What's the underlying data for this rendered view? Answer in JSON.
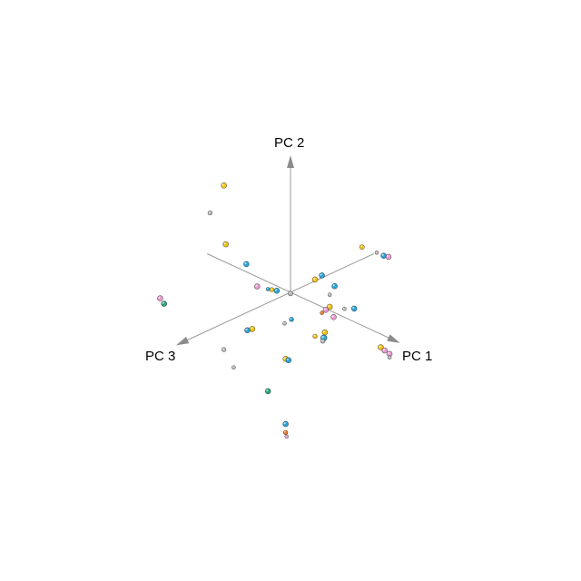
{
  "chart_data": {
    "type": "scatter",
    "projection": "3d",
    "title": "",
    "grid": false,
    "legend": "none",
    "axes": [
      {
        "id": "pc1",
        "label": "PC 1"
      },
      {
        "id": "pc2",
        "label": "PC 2"
      },
      {
        "id": "pc3",
        "label": "PC 3"
      }
    ],
    "axis_color": "#9a9a9a",
    "colors": {
      "blue": "#2aa4d8",
      "yellow": "#f3c316",
      "pink": "#e89ad0",
      "gray": "#b9b9b9",
      "green": "#2ea37a",
      "orange": "#e5792a"
    },
    "points": [
      {
        "pc1": -0.48,
        "pc2": 0.78,
        "pc3": 0.2,
        "color": "yellow",
        "size": 3.0
      },
      {
        "pc1": -0.62,
        "pc2": 0.5,
        "pc3": 0.2,
        "color": "gray",
        "size": 2.4
      },
      {
        "pc1": -0.46,
        "pc2": 0.3,
        "pc3": 0.2,
        "color": "yellow",
        "size": 3.0
      },
      {
        "pc1": -0.35,
        "pc2": 0.14,
        "pc3": 0.1,
        "color": "blue",
        "size": 3.0
      },
      {
        "pc1": -0.34,
        "pc2": -0.08,
        "pc3": 0.0,
        "color": "pink",
        "size": 3.0
      },
      {
        "pc1": -0.14,
        "pc2": -0.04,
        "pc3": 0.0,
        "color": "blue",
        "size": 3.0
      },
      {
        "pc1": -0.19,
        "pc2": -0.05,
        "pc3": 0.0,
        "color": "yellow",
        "size": 2.4
      },
      {
        "pc1": -0.23,
        "pc2": -0.06,
        "pc3": 0.0,
        "color": "blue",
        "size": 2.0
      },
      {
        "pc1": 0.0,
        "pc2": -0.01,
        "pc3": 0.0,
        "color": "gray",
        "size": 2.6
      },
      {
        "pc1": 0.01,
        "pc2": -0.22,
        "pc3": 0.0,
        "color": "blue",
        "size": 2.4
      },
      {
        "pc1": -0.06,
        "pc2": -0.28,
        "pc3": 0.0,
        "color": "gray",
        "size": 2.0
      },
      {
        "pc1": -0.39,
        "pc2": -0.45,
        "pc3": 0.0,
        "color": "yellow",
        "size": 3.0
      },
      {
        "pc1": -0.44,
        "pc2": -0.48,
        "pc3": 0.0,
        "color": "blue",
        "size": 3.0
      },
      {
        "pc1": -0.68,
        "pc2": -0.73,
        "pc3": 0.0,
        "color": "gray",
        "size": 2.4
      },
      {
        "pc1": -0.58,
        "pc2": -0.84,
        "pc3": 0.0,
        "color": "gray",
        "size": 2.0
      },
      {
        "pc1": -0.05,
        "pc2": -0.57,
        "pc3": 0.0,
        "color": "yellow",
        "size": 3.0
      },
      {
        "pc1": -0.02,
        "pc2": -0.57,
        "pc3": 0.0,
        "color": "blue",
        "size": 3.0
      },
      {
        "pc1": -0.13,
        "pc2": -0.83,
        "pc3": 0.1,
        "color": "green",
        "size": 3.0
      },
      {
        "pc1": -1.33,
        "pc2": -0.55,
        "pc3": 0.0,
        "color": "pink",
        "size": 3.0
      },
      {
        "pc1": -1.29,
        "pc2": -0.58,
        "pc3": 0.0,
        "color": "green",
        "size": 3.0
      },
      {
        "pc1": -0.05,
        "pc2": -1.11,
        "pc3": 0.0,
        "color": "blue",
        "size": 3.0
      },
      {
        "pc1": -0.05,
        "pc2": -1.18,
        "pc3": 0.0,
        "color": "orange",
        "size": 2.4
      },
      {
        "pc1": -0.04,
        "pc2": -1.21,
        "pc3": 0.0,
        "color": "pink",
        "size": 2.0
      },
      {
        "pc1": 0.25,
        "pc2": 0.2,
        "pc3": 0.0,
        "color": "yellow",
        "size": 3.0
      },
      {
        "pc1": 0.32,
        "pc2": 0.26,
        "pc3": 0.0,
        "color": "blue",
        "size": 3.0
      },
      {
        "pc1": 0.45,
        "pc2": 0.22,
        "pc3": 0.0,
        "color": "blue",
        "size": 3.0
      },
      {
        "pc1": 0.4,
        "pc2": 0.13,
        "pc3": 0.0,
        "color": "gray",
        "size": 2.0
      },
      {
        "pc1": 0.4,
        "pc2": 0.03,
        "pc3": 0.0,
        "color": "yellow",
        "size": 3.0
      },
      {
        "pc1": 0.36,
        "pc2": -0.01,
        "pc3": 0.0,
        "color": "pink",
        "size": 3.0
      },
      {
        "pc1": 0.44,
        "pc2": -0.04,
        "pc3": 0.0,
        "color": "pink",
        "size": 3.0
      },
      {
        "pc1": 0.32,
        "pc2": -0.05,
        "pc3": 0.0,
        "color": "orange",
        "size": 2.0
      },
      {
        "pc1": 0.35,
        "pc2": -0.2,
        "pc3": 0.0,
        "color": "yellow",
        "size": 3.0
      },
      {
        "pc1": 0.34,
        "pc2": -0.25,
        "pc3": 0.0,
        "color": "blue",
        "size": 3.4
      },
      {
        "pc1": 0.33,
        "pc2": -0.28,
        "pc3": 0.0,
        "color": "gray",
        "size": 2.4
      },
      {
        "pc1": 0.25,
        "pc2": -0.27,
        "pc3": 0.0,
        "color": "yellow",
        "size": 2.4
      },
      {
        "pc1": 0.92,
        "pc2": -0.11,
        "pc3": 0.0,
        "color": "yellow",
        "size": 3.0
      },
      {
        "pc1": 0.96,
        "pc2": -0.12,
        "pc3": 0.0,
        "color": "pink",
        "size": 3.0
      },
      {
        "pc1": 1.01,
        "pc2": -0.13,
        "pc3": 0.0,
        "color": "pink",
        "size": 3.0
      },
      {
        "pc1": 1.01,
        "pc2": -0.16,
        "pc3": 0.0,
        "color": "gray",
        "size": 2.0
      },
      {
        "pc1": 0.73,
        "pc2": 0.65,
        "pc3": 0.0,
        "color": "yellow",
        "size": 2.6
      },
      {
        "pc1": 0.95,
        "pc2": 0.66,
        "pc3": 0.0,
        "color": "blue",
        "size": 3.0
      },
      {
        "pc1": 1.0,
        "pc2": 0.67,
        "pc3": 0.0,
        "color": "pink",
        "size": 3.0
      },
      {
        "pc1": 0.88,
        "pc2": 0.66,
        "pc3": 0.0,
        "color": "gray",
        "size": 2.0
      },
      {
        "pc1": 0.65,
        "pc2": 0.11,
        "pc3": 0.0,
        "color": "blue",
        "size": 3.0
      },
      {
        "pc1": 0.55,
        "pc2": 0.07,
        "pc3": 0.0,
        "color": "gray",
        "size": 2.0
      }
    ]
  }
}
